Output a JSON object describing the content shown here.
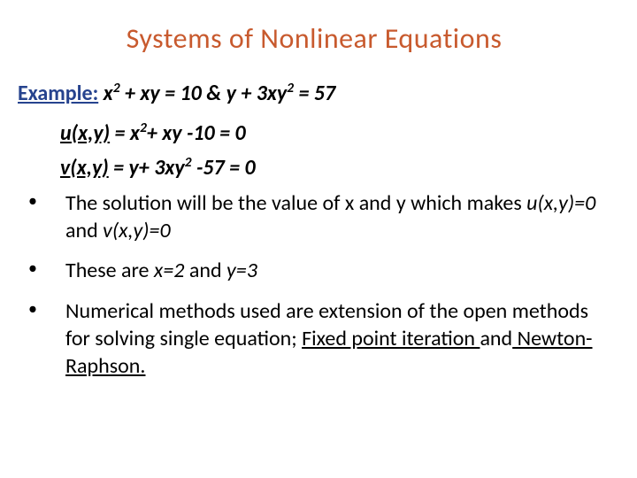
{
  "title": "Systems of Nonlinear Equations",
  "example_label": "Example:",
  "example_eq_html": "x<span class='super'>2</span> + xy = 10 & y + 3xy<span class='super'>2</span> = 57",
  "eq_u_lhs_html": "u(x,y)",
  "eq_u_rhs_html": " = x<span class='super'>2</span>+ xy -10 = 0",
  "eq_v_lhs_html": "v(x,y)",
  "eq_v_rhs_html": " = y+ 3xy<span class='super'>2</span> -57 = 0",
  "bullet1_html": "The solution will be the value of x and y which makes <span class='ital'>u(x,y)=0</span> and <span class='ital'>v(x,y)=0</span>",
  "bullet2_html": "These are <span class='ital'>x=2</span> and <span class='ital'>y=3</span>",
  "bullet3_html": "Numerical methods used are extension of the open methods for solving single equation; <span class='ul'>Fixed point iteration </span>and<span class='ul'> Newton-Raphson.</span>",
  "colors": {
    "title": "#c85a2e",
    "example_label": "#26438e",
    "text": "#000000",
    "background": "#ffffff"
  },
  "fontsizes": {
    "title": 32,
    "body": 24
  }
}
